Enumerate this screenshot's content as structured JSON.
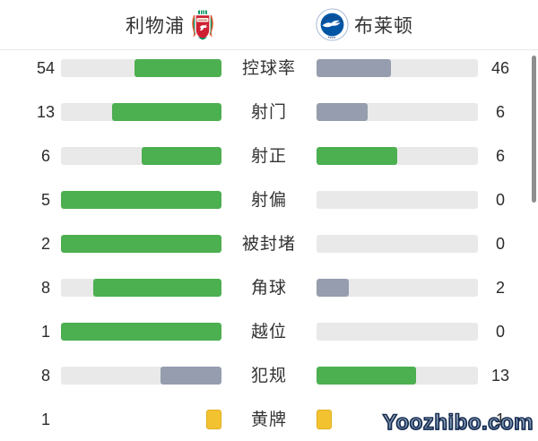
{
  "header": {
    "home_team": "利物浦",
    "away_team": "布莱顿"
  },
  "colors": {
    "leading_bar": "#4caf50",
    "trailing_bar": "#959dae",
    "bar_track": "#e9e9e9",
    "yellow_card_fill": "#f3c231",
    "yellow_card_border": "#dfae1e"
  },
  "stats": [
    {
      "label": "控球率",
      "home": 54,
      "away": 46
    },
    {
      "label": "射门",
      "home": 13,
      "away": 6
    },
    {
      "label": "射正",
      "home": 6,
      "away": 6
    },
    {
      "label": "射偏",
      "home": 5,
      "away": 0
    },
    {
      "label": "被封堵",
      "home": 2,
      "away": 0
    },
    {
      "label": "角球",
      "home": 8,
      "away": 2
    },
    {
      "label": "越位",
      "home": 1,
      "away": 0
    },
    {
      "label": "犯规",
      "home": 8,
      "away": 13
    },
    {
      "label": "黄牌",
      "home": 1,
      "away": 1,
      "type": "cards"
    }
  ],
  "watermark": "Yoozhibo.com",
  "chart_data": {
    "type": "bar",
    "orientation": "horizontal-paired",
    "categories": [
      "控球率",
      "射门",
      "射正",
      "射偏",
      "被封堵",
      "角球",
      "越位",
      "犯规",
      "黄牌"
    ],
    "series": [
      {
        "name": "利物浦",
        "values": [
          54,
          13,
          6,
          5,
          2,
          8,
          1,
          8,
          1
        ]
      },
      {
        "name": "布莱顿",
        "values": [
          46,
          6,
          6,
          0,
          0,
          2,
          0,
          13,
          1
        ]
      }
    ],
    "title": "",
    "legend_position": "top",
    "grid": false,
    "notes": "Each bar fill = value/(home+away); green marks the leading (or tied) side, gray-blue the trailing side; 控球率 values are percentages; 黄牌 row shows yellow-card icons instead of bars"
  }
}
